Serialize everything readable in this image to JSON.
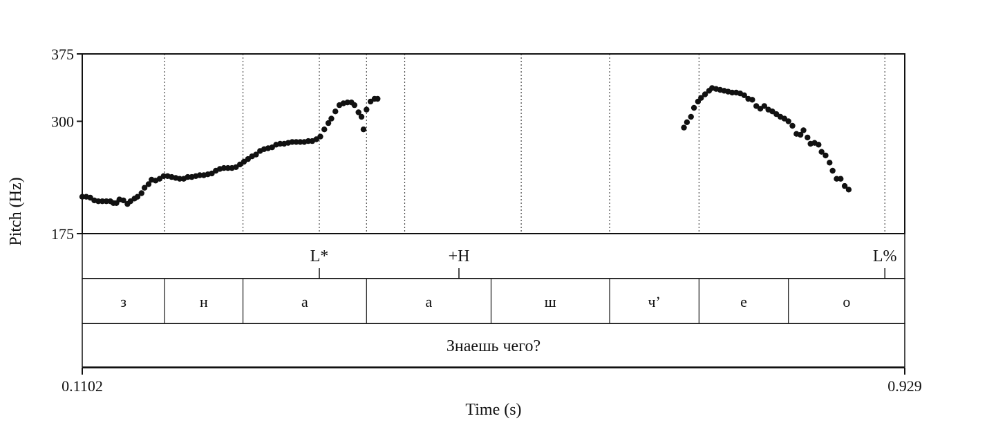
{
  "chart_data": {
    "type": "scatter",
    "xlabel": "Time (s)",
    "ylabel": "Pitch (Hz)",
    "xlim": [
      0.1102,
      0.929
    ],
    "ylim": [
      175,
      375
    ],
    "x_tick_labels": [
      "0.1102",
      "0.929"
    ],
    "y_ticks": [
      175,
      300,
      375
    ],
    "y_tick_labels": [
      "175",
      "300",
      "375"
    ],
    "series": [
      {
        "values": [
          [
            0.1102,
            216
          ],
          [
            0.1142,
            216
          ],
          [
            0.1182,
            215
          ],
          [
            0.1222,
            212
          ],
          [
            0.1262,
            211
          ],
          [
            0.1302,
            211
          ],
          [
            0.1342,
            211
          ],
          [
            0.1382,
            211
          ],
          [
            0.1412,
            209
          ],
          [
            0.1442,
            209
          ],
          [
            0.1472,
            213
          ],
          [
            0.1512,
            212
          ],
          [
            0.1552,
            208
          ],
          [
            0.1582,
            211
          ],
          [
            0.1622,
            214
          ],
          [
            0.1652,
            216
          ],
          [
            0.1692,
            220
          ],
          [
            0.1722,
            226
          ],
          [
            0.1762,
            230
          ],
          [
            0.1792,
            235
          ],
          [
            0.1832,
            234
          ],
          [
            0.1872,
            236
          ],
          [
            0.1912,
            239
          ],
          [
            0.1952,
            239
          ],
          [
            0.1992,
            238
          ],
          [
            0.2032,
            237
          ],
          [
            0.2072,
            236
          ],
          [
            0.2112,
            236
          ],
          [
            0.2152,
            238
          ],
          [
            0.2192,
            238
          ],
          [
            0.2232,
            239
          ],
          [
            0.2272,
            240
          ],
          [
            0.2312,
            240
          ],
          [
            0.2352,
            241
          ],
          [
            0.2392,
            242
          ],
          [
            0.2432,
            245
          ],
          [
            0.2472,
            247
          ],
          [
            0.2512,
            248
          ],
          [
            0.2552,
            248
          ],
          [
            0.2592,
            248
          ],
          [
            0.2632,
            249
          ],
          [
            0.2672,
            252
          ],
          [
            0.2712,
            255
          ],
          [
            0.2752,
            258
          ],
          [
            0.2792,
            261
          ],
          [
            0.2832,
            263
          ],
          [
            0.2872,
            267
          ],
          [
            0.2912,
            269
          ],
          [
            0.2952,
            270
          ],
          [
            0.2992,
            271
          ],
          [
            0.3032,
            274
          ],
          [
            0.3072,
            275
          ],
          [
            0.3112,
            275
          ],
          [
            0.3152,
            276
          ],
          [
            0.3192,
            277
          ],
          [
            0.3232,
            277
          ],
          [
            0.3272,
            277
          ],
          [
            0.3312,
            277
          ],
          [
            0.3352,
            278
          ],
          [
            0.3392,
            278
          ],
          [
            0.3432,
            280
          ],
          [
            0.3472,
            283
          ],
          [
            0.3512,
            291
          ],
          [
            0.3552,
            298
          ],
          [
            0.3582,
            303
          ],
          [
            0.3622,
            311
          ],
          [
            0.3662,
            318
          ],
          [
            0.3702,
            320
          ],
          [
            0.3742,
            321
          ],
          [
            0.3782,
            321
          ],
          [
            0.3812,
            318
          ],
          [
            0.3852,
            310
          ],
          [
            0.3882,
            305
          ],
          [
            0.3902,
            291
          ],
          [
            0.3932,
            313
          ],
          [
            0.3972,
            322
          ],
          [
            0.4012,
            325
          ],
          [
            0.4042,
            325
          ],
          [
            0.7092,
            293
          ],
          [
            0.7122,
            299
          ],
          [
            0.7162,
            305
          ],
          [
            0.7192,
            315
          ],
          [
            0.7232,
            322
          ],
          [
            0.7262,
            326
          ],
          [
            0.7302,
            330
          ],
          [
            0.7342,
            334
          ],
          [
            0.7372,
            337
          ],
          [
            0.7412,
            336
          ],
          [
            0.7452,
            335
          ],
          [
            0.7492,
            334
          ],
          [
            0.7532,
            333
          ],
          [
            0.7572,
            332
          ],
          [
            0.7612,
            332
          ],
          [
            0.7652,
            331
          ],
          [
            0.7692,
            329
          ],
          [
            0.7732,
            325
          ],
          [
            0.7772,
            324
          ],
          [
            0.7812,
            317
          ],
          [
            0.7852,
            314
          ],
          [
            0.7892,
            317
          ],
          [
            0.7932,
            313
          ],
          [
            0.7972,
            311
          ],
          [
            0.8012,
            308
          ],
          [
            0.8052,
            305
          ],
          [
            0.8092,
            303
          ],
          [
            0.8132,
            300
          ],
          [
            0.8172,
            295
          ],
          [
            0.8212,
            286
          ],
          [
            0.8252,
            285
          ],
          [
            0.8282,
            290
          ],
          [
            0.8322,
            282
          ],
          [
            0.8352,
            275
          ],
          [
            0.8392,
            276
          ],
          [
            0.8432,
            274
          ],
          [
            0.8462,
            266
          ],
          [
            0.8502,
            262
          ],
          [
            0.8542,
            254
          ],
          [
            0.8572,
            245
          ],
          [
            0.8612,
            236
          ],
          [
            0.8652,
            236
          ],
          [
            0.8692,
            228
          ],
          [
            0.8732,
            224
          ]
        ]
      }
    ],
    "interval_lines_s": [
      0.1922,
      0.2702,
      0.3462,
      0.3932,
      0.4312,
      0.5472,
      0.6352,
      0.7242,
      0.9092
    ],
    "tiers": {
      "tones": [
        {
          "label": "L*",
          "time": 0.3462
        },
        {
          "label": "+H",
          "time": 0.4852
        },
        {
          "label": "L%",
          "time": 0.9092
        }
      ],
      "segments": [
        {
          "label": "з",
          "start": 0.1102,
          "end": 0.1922
        },
        {
          "label": "н",
          "start": 0.1922,
          "end": 0.2702
        },
        {
          "label": "а",
          "start": 0.2702,
          "end": 0.3932
        },
        {
          "label": "а",
          "start": 0.3932,
          "end": 0.5172
        },
        {
          "label": "ш",
          "start": 0.5172,
          "end": 0.6352
        },
        {
          "label": "ч’",
          "start": 0.6352,
          "end": 0.7242
        },
        {
          "label": "е",
          "start": 0.7242,
          "end": 0.8132
        },
        {
          "label": "о",
          "start": 0.8132,
          "end": 0.929
        }
      ],
      "sentence": "Знаешь чего?"
    }
  }
}
